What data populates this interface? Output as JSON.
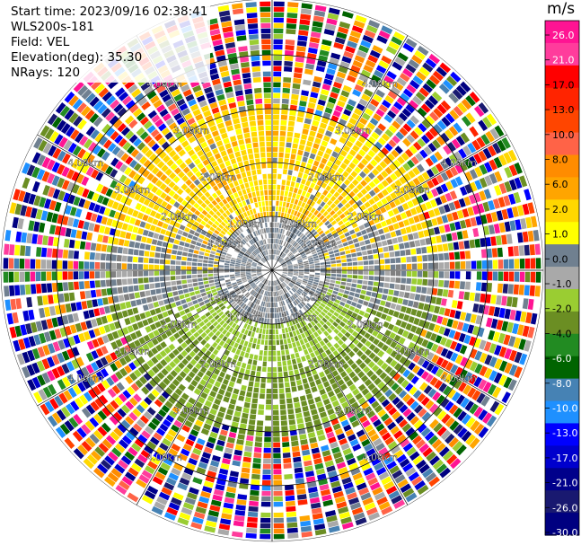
{
  "header": {
    "start_time": "Start time: 2023/09/16 02:38:41",
    "site": "WLS200s-181",
    "field": "Field: VEL",
    "elevation": "Elevation(deg): 35.30",
    "nrays": "NRays: 120"
  },
  "chart_data": {
    "type": "heatmap",
    "title": "",
    "projection": "polar (PPI)",
    "field": "VEL",
    "n_rays": 120,
    "elevation_deg": 35.3,
    "range_ring_labels": [
      "1.00km",
      "2.00km",
      "3.00km",
      "4.00km"
    ],
    "range_rings_km": [
      1,
      2,
      3,
      4
    ],
    "radial_spokes_deg": [
      0,
      30,
      60,
      90,
      120,
      150,
      180,
      210,
      240,
      270,
      300,
      330
    ],
    "colorbar": {
      "unit": "m/s",
      "ticks": [
        "26.0",
        "21.0",
        "17.0",
        "13.0",
        "10.0",
        "8.0",
        "6.0",
        "2.0",
        "1.0",
        "0.0",
        "-1.0",
        "-2.0",
        "-4.0",
        "-6.0",
        "-8.0",
        "-10.0",
        "-13.0",
        "-17.0",
        "-21.0",
        "-26.0",
        "-30.0"
      ],
      "colors": [
        "#ff1493",
        "#ff3c9c",
        "#ff0000",
        "#ff2400",
        "#ff4500",
        "#ff6347",
        "#ff8c00",
        "#ffa500",
        "#ffd700",
        "#ffff00",
        "#708090",
        "#a9a9a9",
        "#9acd32",
        "#6b8e23",
        "#228b22",
        "#006400",
        "#4682b4",
        "#1e90ff",
        "#0000ff",
        "#0000cd",
        "#00008b",
        "#191970",
        "#000080"
      ]
    },
    "description_of_pattern": {
      "inner_1km": "gray (approx 0 m/s)",
      "north_1_to_3km": "yellow (approx 2 to 6 m/s)",
      "south_1_to_3km": "green (approx -2 to -6 m/s)",
      "beyond_3km": "noise (mixed colors)"
    }
  }
}
